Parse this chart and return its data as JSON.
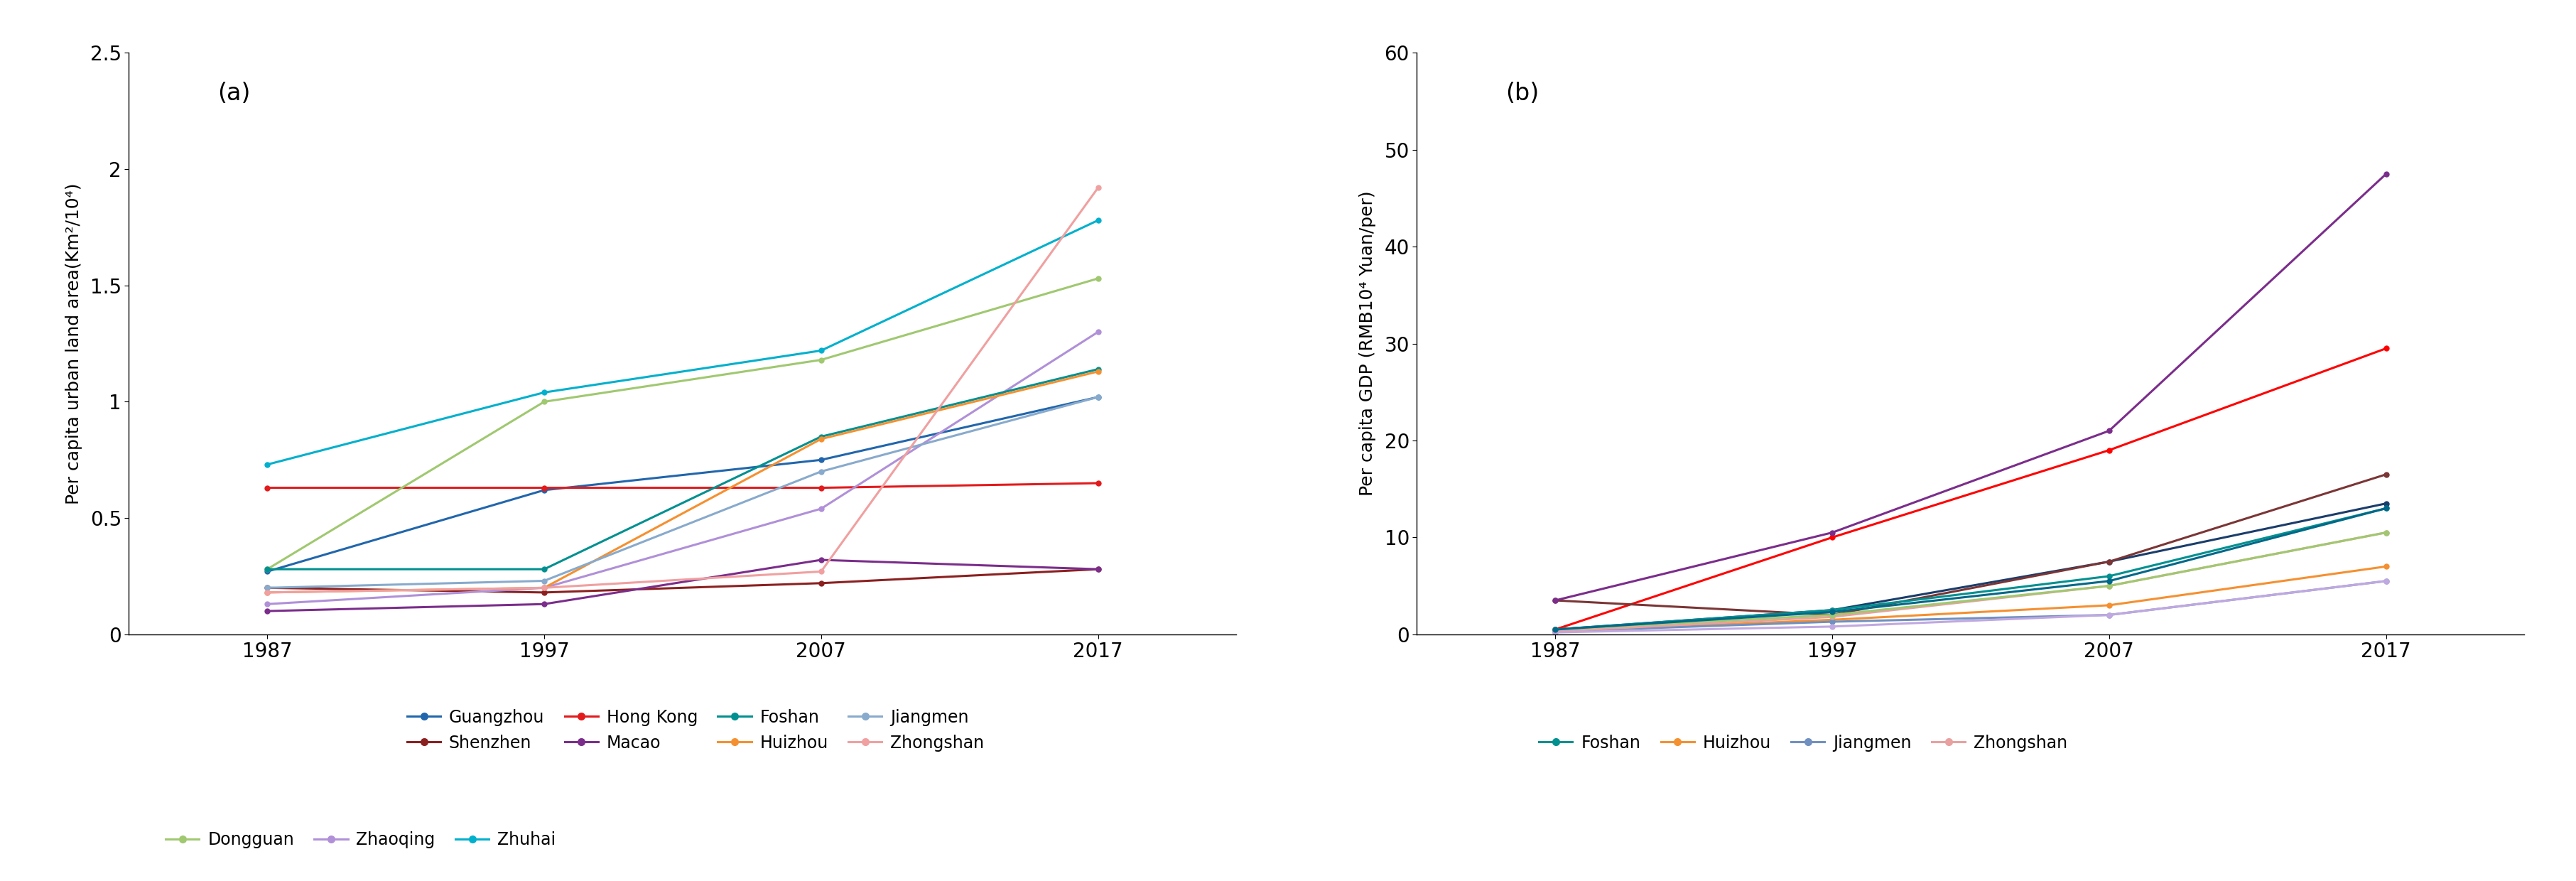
{
  "years": [
    1987,
    1997,
    2007,
    2017
  ],
  "panel_a": {
    "title": "(a)",
    "ylabel": "Per capita urban land area(Km²/10⁴)",
    "ylim": [
      0,
      2.5
    ],
    "yticks": [
      0,
      0.5,
      1.0,
      1.5,
      2.0,
      2.5
    ],
    "series": [
      {
        "name": "Guangzhou",
        "color": "#2166ac",
        "values": [
          0.27,
          0.62,
          0.75,
          1.02
        ]
      },
      {
        "name": "Shenzhen",
        "color": "#8b2020",
        "values": [
          0.2,
          0.18,
          0.22,
          0.28
        ]
      },
      {
        "name": "Hong Kong",
        "color": "#e31a1c",
        "values": [
          0.63,
          0.63,
          0.63,
          0.65
        ]
      },
      {
        "name": "Macao",
        "color": "#7b2d8b",
        "values": [
          0.1,
          0.13,
          0.32,
          0.28
        ]
      },
      {
        "name": "Dongguan",
        "color": "#a0c870",
        "values": [
          0.28,
          1.0,
          1.18,
          1.53
        ]
      },
      {
        "name": "Zhaoqing",
        "color": "#b090d8",
        "values": [
          0.13,
          0.2,
          0.54,
          1.3
        ]
      },
      {
        "name": "Zhuhai",
        "color": "#00b0cc",
        "values": [
          0.73,
          1.04,
          1.22,
          1.78
        ]
      },
      {
        "name": "Foshan",
        "color": "#009090",
        "values": [
          0.28,
          0.28,
          0.85,
          1.14
        ]
      },
      {
        "name": "Huizhou",
        "color": "#f59030",
        "values": [
          0.18,
          0.2,
          0.84,
          1.13
        ]
      },
      {
        "name": "Jiangmen",
        "color": "#88aacc",
        "values": [
          0.2,
          0.23,
          0.7,
          1.02
        ]
      },
      {
        "name": "Zhongshan",
        "color": "#f0a0a0",
        "values": [
          0.18,
          0.2,
          0.27,
          1.92
        ]
      }
    ]
  },
  "panel_b": {
    "title": "(b)",
    "ylabel": "Per capita GDP (RMB10⁴ Yuan/per)",
    "ylim": [
      0,
      60
    ],
    "yticks": [
      0,
      10,
      20,
      30,
      40,
      50,
      60
    ],
    "series": [
      {
        "name": "Guangzhou",
        "color": "#1a3d6b",
        "values": [
          0.5,
          2.5,
          7.5,
          13.5
        ]
      },
      {
        "name": "Shenzhen",
        "color": "#ff0000",
        "values": [
          0.5,
          10.0,
          19.0,
          29.5
        ]
      },
      {
        "name": "Hong Kong",
        "color": "#7b3535",
        "values": [
          3.5,
          2.0,
          7.5,
          16.5
        ]
      },
      {
        "name": "Macao",
        "color": "#7b2d8b",
        "values": [
          3.5,
          10.5,
          21.0,
          47.5
        ]
      },
      {
        "name": "Foshan",
        "color": "#009090",
        "values": [
          0.5,
          2.5,
          6.0,
          13.0
        ]
      },
      {
        "name": "Huizhou",
        "color": "#f59030",
        "values": [
          0.3,
          1.5,
          3.0,
          7.0
        ]
      },
      {
        "name": "Jiangmen",
        "color": "#7090c0",
        "values": [
          0.3,
          1.3,
          2.0,
          5.5
        ]
      },
      {
        "name": "Zhongshan",
        "color": "#e8a0a0",
        "values": [
          0.3,
          1.8,
          5.0,
          10.5
        ]
      },
      {
        "name": "Dongguan",
        "color": "#a0c870",
        "values": [
          0.5,
          2.0,
          5.0,
          10.5
        ]
      },
      {
        "name": "Zhaoqing",
        "color": "#c0a8e0",
        "values": [
          0.2,
          0.8,
          2.0,
          5.5
        ]
      },
      {
        "name": "Zhuhai",
        "color": "#006888",
        "values": [
          0.5,
          2.3,
          5.5,
          13.0
        ]
      }
    ]
  },
  "legend_a_row1": [
    "Guangzhou",
    "Shenzhen",
    "Hong Kong",
    "Macao",
    "Foshan",
    "Huizhou",
    "Jiangmen",
    "Zhongshan"
  ],
  "legend_a_row2": [
    "Dongguan",
    "Zhaoqing",
    "Zhuhai"
  ],
  "legend_b_row1": [
    "Foshan",
    "Huizhou",
    "Jiangmen",
    "Zhongshan"
  ],
  "background_color": "#ffffff",
  "marker": "o",
  "markersize": 5,
  "linewidth": 2.2
}
